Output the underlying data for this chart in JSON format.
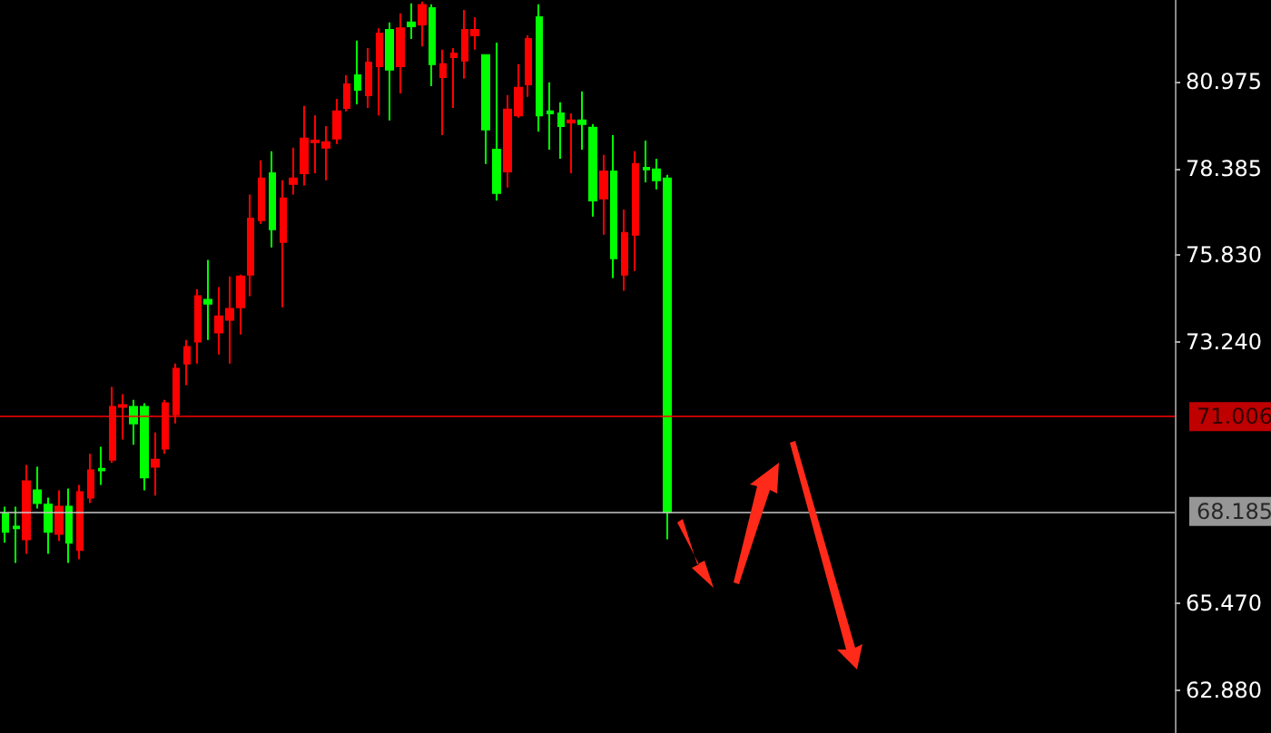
{
  "chart_data": {
    "type": "candlestick",
    "categories": [
      null,
      null,
      null,
      null,
      null,
      null,
      null,
      null,
      null,
      null,
      null,
      null,
      null,
      null,
      null,
      null,
      null,
      null,
      null,
      null,
      null,
      null,
      null,
      null,
      null,
      null,
      null,
      null,
      null,
      null,
      null,
      null,
      null,
      null,
      null,
      null,
      null,
      null,
      null,
      null,
      null,
      null,
      null,
      null,
      null,
      null,
      null,
      null,
      null,
      null,
      null,
      null,
      null,
      null,
      null,
      null,
      null,
      null,
      null,
      null,
      null,
      null,
      null,
      null,
      null,
      null,
      null,
      null,
      null,
      null,
      null,
      null,
      null,
      null,
      null,
      null,
      null,
      null,
      null,
      null,
      null,
      null,
      null,
      null,
      null,
      null,
      null,
      null,
      null,
      null,
      null,
      null,
      null,
      null,
      null,
      null,
      null,
      null,
      null,
      null,
      null,
      null,
      null,
      null,
      null,
      null,
      null,
      null,
      null,
      null
    ],
    "ohlc": [
      [
        68.12,
        68.33,
        67.26,
        67.58
      ],
      [
        67.74,
        68.33,
        66.66,
        67.69
      ],
      [
        67.36,
        69.57,
        66.93,
        69.09
      ],
      [
        68.82,
        69.52,
        68.28,
        68.44
      ],
      [
        68.39,
        68.6,
        66.93,
        67.58
      ],
      [
        67.52,
        68.82,
        67.31,
        68.33
      ],
      [
        68.33,
        68.87,
        66.66,
        67.26
      ],
      [
        67.04,
        68.98,
        66.77,
        68.76
      ],
      [
        68.6,
        69.9,
        68.44,
        69.41
      ],
      [
        69.46,
        70.11,
        68.98,
        69.41
      ],
      [
        69.73,
        71.89,
        69.63,
        71.3
      ],
      [
        71.3,
        71.68,
        70.33,
        71.35
      ],
      [
        71.3,
        71.51,
        70.17,
        70.81
      ],
      [
        71.3,
        71.41,
        68.82,
        69.2
      ],
      [
        69.52,
        70.54,
        68.66,
        69.73
      ],
      [
        70.06,
        71.51,
        69.9,
        71.41
      ],
      [
        71.08,
        72.59,
        70.81,
        72.43
      ],
      [
        72.59,
        73.29,
        71.95,
        73.08
      ],
      [
        73.24,
        74.8,
        72.59,
        74.59
      ],
      [
        74.48,
        75.67,
        73.29,
        74.37
      ],
      [
        73.51,
        74.86,
        72.86,
        73.99
      ],
      [
        73.89,
        75.18,
        72.59,
        74.21
      ],
      [
        74.26,
        75.23,
        73.45,
        75.18
      ],
      [
        75.23,
        77.61,
        74.59,
        76.9
      ],
      [
        76.85,
        78.63,
        76.74,
        78.09
      ],
      [
        78.25,
        78.9,
        76.04,
        76.58
      ],
      [
        76.2,
        78.04,
        74.26,
        77.5
      ],
      [
        77.93,
        79.01,
        77.61,
        78.09
      ],
      [
        78.25,
        80.25,
        77.88,
        79.28
      ],
      [
        79.17,
        79.97,
        78.25,
        79.22
      ],
      [
        79.01,
        79.65,
        78.04,
        79.17
      ],
      [
        79.28,
        80.46,
        79.12,
        80.09
      ],
      [
        80.19,
        81.16,
        80.09,
        80.89
      ],
      [
        81.16,
        82.19,
        80.3,
        80.73
      ],
      [
        80.57,
        81.97,
        80.19,
        81.54
      ],
      [
        81.43,
        82.56,
        79.97,
        82.4
      ],
      [
        82.51,
        82.73,
        79.82,
        81.33
      ],
      [
        81.43,
        83.0,
        80.62,
        82.56
      ],
      [
        82.73,
        83.3,
        82.24,
        82.62
      ],
      [
        82.67,
        83.35,
        82.02,
        83.25
      ],
      [
        83.16,
        83.27,
        80.84,
        81.49
      ],
      [
        81.11,
        81.92,
        79.38,
        81.49
      ],
      [
        81.7,
        81.97,
        80.19,
        81.81
      ],
      [
        81.6,
        83.1,
        81.06,
        82.51
      ],
      [
        82.35,
        82.89,
        81.92,
        82.51
      ],
      [
        81.76,
        81.76,
        78.52,
        79.55
      ],
      [
        78.95,
        82.13,
        77.44,
        77.66
      ],
      [
        78.3,
        80.57,
        77.82,
        80.14
      ],
      [
        79.97,
        81.49,
        79.9,
        80.79
      ],
      [
        80.89,
        82.35,
        80.52,
        82.24
      ],
      [
        82.89,
        83.27,
        79.49,
        79.97
      ],
      [
        80.09,
        80.95,
        78.95,
        80.03
      ],
      [
        80.03,
        80.36,
        78.68,
        79.65
      ],
      [
        79.76,
        80.03,
        78.25,
        79.82
      ],
      [
        79.82,
        80.68,
        78.95,
        79.71
      ],
      [
        79.6,
        79.71,
        76.96,
        77.44
      ],
      [
        77.5,
        78.79,
        76.42,
        78.3
      ],
      [
        78.3,
        79.38,
        75.13,
        75.72
      ],
      [
        75.23,
        77.17,
        74.75,
        76.47
      ],
      [
        76.42,
        78.9,
        75.34,
        78.52
      ],
      [
        78.41,
        79.22,
        77.98,
        78.36
      ],
      [
        78.36,
        78.68,
        77.77,
        78.04
      ],
      [
        78.09,
        78.2,
        67.36,
        68.17
      ],
      null,
      null,
      null,
      null,
      null,
      null,
      null,
      null,
      null,
      null,
      null,
      null,
      null,
      null,
      null,
      null,
      null,
      null,
      null,
      null,
      null,
      null,
      null,
      null,
      null,
      null,
      null,
      null,
      null,
      null,
      null,
      null,
      null,
      null,
      null,
      null,
      null,
      null,
      null,
      null,
      null,
      null,
      null,
      null,
      null,
      null,
      null
    ],
    "colors": [
      "#00ff00",
      "#00ff00",
      "#ff0000",
      "#00ff00",
      "#00ff00",
      "#ff0000",
      "#00ff00",
      "#ff0000",
      "#ff0000",
      "#00ff00",
      "#ff0000",
      "#ff0000",
      "#00ff00",
      "#00ff00",
      "#ff0000",
      "#ff0000",
      "#ff0000",
      "#ff0000",
      "#ff0000",
      "#00ff00",
      "#ff0000",
      "#ff0000",
      "#ff0000",
      "#ff0000",
      "#ff0000",
      "#00ff00",
      "#ff0000",
      "#ff0000",
      "#ff0000",
      "#ff0000",
      "#ff0000",
      "#ff0000",
      "#ff0000",
      "#00ff00",
      "#ff0000",
      "#ff0000",
      "#00ff00",
      "#ff0000",
      "#00ff00",
      "#ff0000",
      "#00ff00",
      "#ff0000",
      "#ff0000",
      "#ff0000",
      "#ff0000",
      "#00ff00",
      "#00ff00",
      "#ff0000",
      "#ff0000",
      "#ff0000",
      "#00ff00",
      "#00ff00",
      "#00ff00",
      "#ff0000",
      "#00ff00",
      "#00ff00",
      "#ff0000",
      "#00ff00",
      "#ff0000",
      "#ff0000",
      "#00ff00",
      "#00ff00",
      "#00ff00",
      null,
      null,
      null,
      null,
      null,
      null,
      null,
      null,
      null,
      null,
      null,
      null,
      null,
      null,
      null,
      null,
      null,
      null,
      null,
      null,
      null,
      null,
      null,
      null,
      null,
      null,
      null,
      null,
      null,
      null,
      null,
      null,
      null,
      null,
      null,
      null,
      null,
      null,
      null,
      null,
      null,
      null,
      null,
      null,
      null,
      null,
      null
    ],
    "ylim": [
      61.6,
      83.4
    ],
    "yticks": [
      {
        "value": 62.88,
        "label": "62.880"
      },
      {
        "value": 65.47,
        "label": "65.470"
      },
      {
        "value": 73.24,
        "label": "73.240"
      },
      {
        "value": 75.83,
        "label": "75.830"
      },
      {
        "value": 78.385,
        "label": "78.385"
      },
      {
        "value": 80.975,
        "label": "80.975"
      }
    ],
    "ref_lines": [
      {
        "axis": "y",
        "value": 71.006,
        "label": "71.006",
        "color": "#ff0000"
      },
      {
        "axis": "y",
        "value": 68.185,
        "label": "68.185",
        "color": "#c8c8c8"
      }
    ],
    "grid": false
  }
}
